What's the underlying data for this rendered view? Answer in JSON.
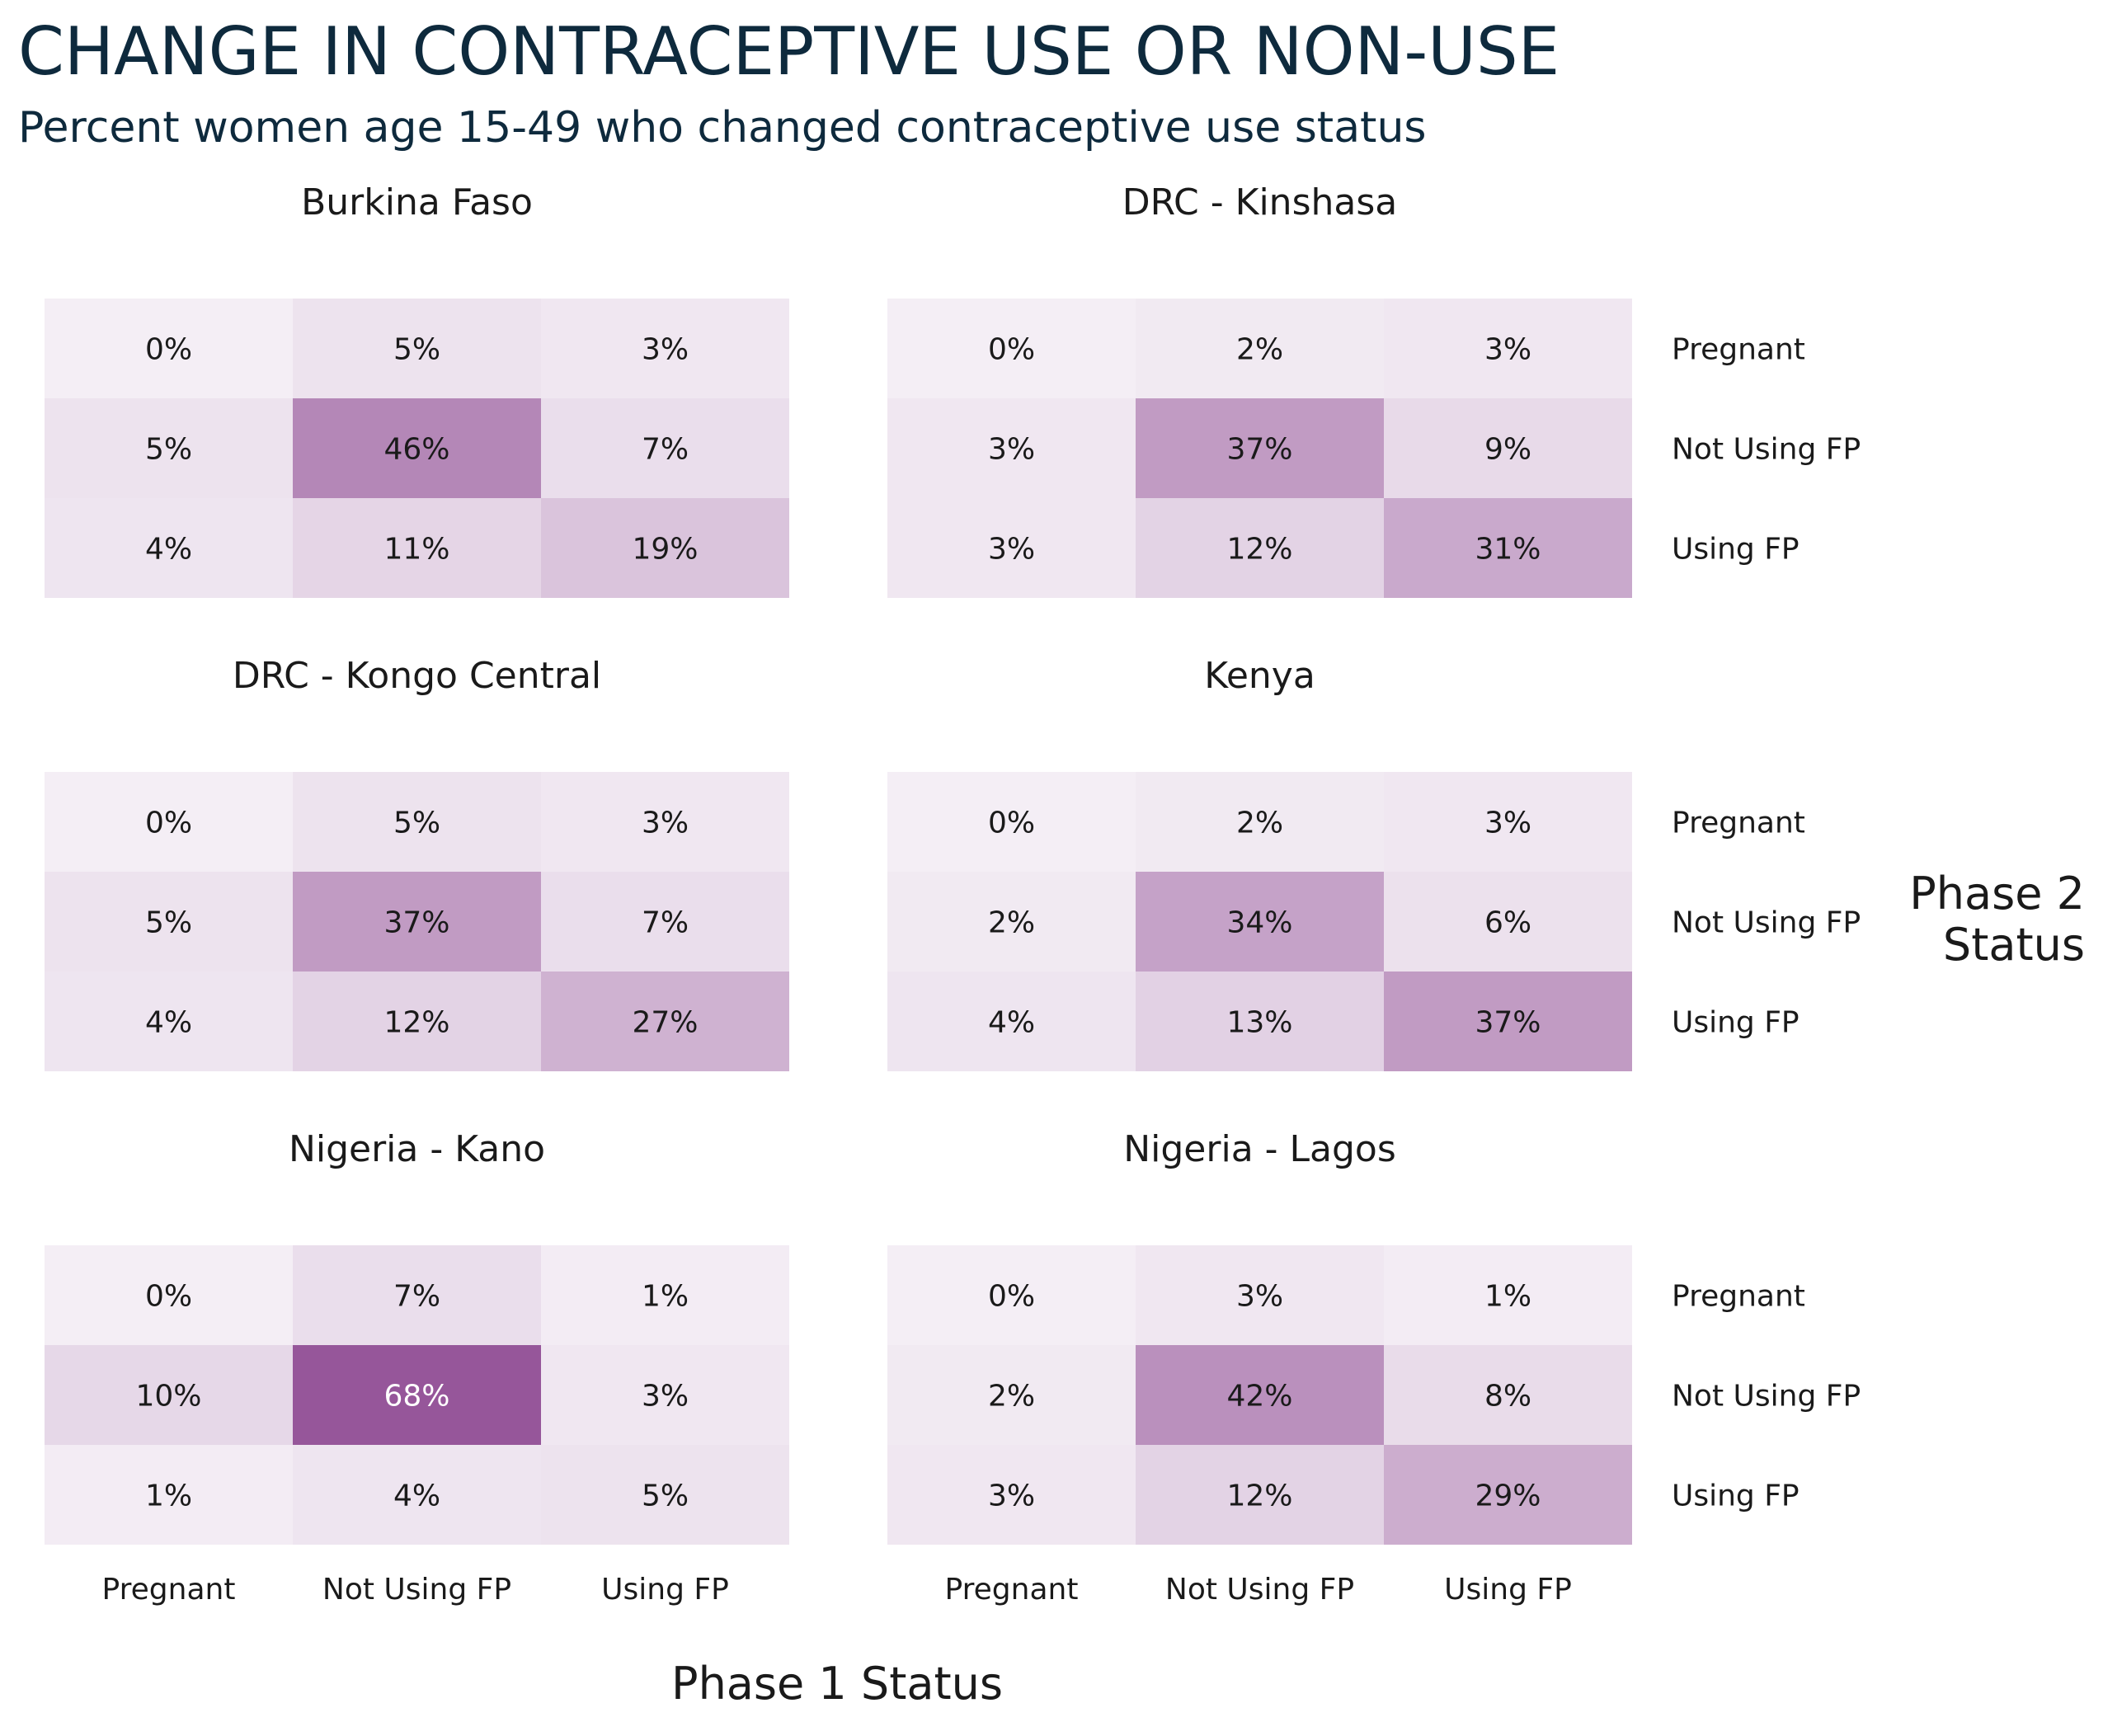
{
  "chart_data": {
    "type": "heatmap",
    "title": "CHANGE IN CONTRACEPTIVE USE OR NON-USE",
    "subtitle": "Percent women age 15-49 who changed contraceptive use status",
    "xlabel": "Phase 1 Status",
    "ylabel": "Phase 2 Status",
    "x_categories": [
      "Pregnant",
      "Not Using FP",
      "Using FP"
    ],
    "y_categories": [
      "Pregnant",
      "Not Using FP",
      "Using FP"
    ],
    "value_format": "percent",
    "color_scale": {
      "low": "#f4eef5",
      "high": "#96569a"
    },
    "panels": [
      {
        "name": "Burkina Faso",
        "values": [
          [
            0,
            5,
            3
          ],
          [
            5,
            46,
            7
          ],
          [
            4,
            11,
            19
          ]
        ]
      },
      {
        "name": "DRC - Kinshasa",
        "values": [
          [
            0,
            2,
            3
          ],
          [
            3,
            37,
            9
          ],
          [
            3,
            12,
            31
          ]
        ]
      },
      {
        "name": "DRC - Kongo Central",
        "values": [
          [
            0,
            5,
            3
          ],
          [
            5,
            37,
            7
          ],
          [
            4,
            12,
            27
          ]
        ]
      },
      {
        "name": "Kenya",
        "values": [
          [
            0,
            2,
            3
          ],
          [
            2,
            34,
            6
          ],
          [
            4,
            13,
            37
          ]
        ]
      },
      {
        "name": "Nigeria - Kano",
        "values": [
          [
            0,
            7,
            1
          ],
          [
            10,
            68,
            3
          ],
          [
            1,
            4,
            5
          ]
        ]
      },
      {
        "name": "Nigeria - Lagos",
        "values": [
          [
            0,
            3,
            1
          ],
          [
            2,
            42,
            8
          ],
          [
            3,
            12,
            29
          ]
        ]
      }
    ]
  },
  "colors": {
    "title": "#0e2a3d",
    "text": "#1a1a1a",
    "light_text": "#ffffff"
  }
}
